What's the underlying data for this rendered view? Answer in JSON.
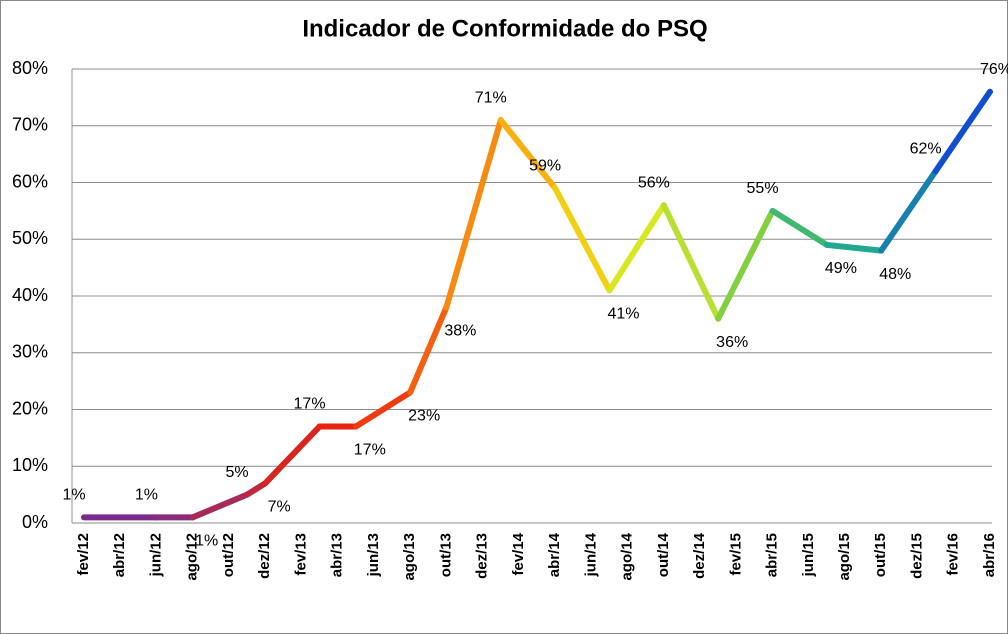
{
  "chart_data": {
    "type": "line",
    "title": "Indicador de Conformidade do PSQ",
    "categories": [
      "fev/12",
      null,
      "abr/12",
      null,
      "jun/12",
      null,
      "ago/12",
      null,
      "out/12",
      null,
      "dez/12",
      null,
      "fev/13",
      null,
      "abr/13",
      null,
      "jun/13",
      null,
      "ago/13",
      null,
      "out/13",
      null,
      "dez/13",
      null,
      "fev/14",
      null,
      "abr/14",
      null,
      "jun/14",
      null,
      "ago/14",
      null,
      "out/14",
      null,
      "dez/14",
      null,
      "fev/15",
      null,
      "abr/15",
      null,
      "jun/15",
      null,
      "ago/15",
      null,
      "out/15",
      null,
      "dez/15",
      null,
      "fev/16",
      null,
      "abr/16"
    ],
    "values": [
      1,
      null,
      null,
      null,
      1,
      null,
      1,
      null,
      null,
      5,
      7,
      null,
      null,
      17,
      null,
      17,
      null,
      null,
      23,
      null,
      38,
      null,
      null,
      71,
      null,
      null,
      59,
      null,
      null,
      41,
      null,
      null,
      56,
      null,
      null,
      36,
      null,
      null,
      55,
      null,
      null,
      49,
      null,
      null,
      48,
      null,
      null,
      62,
      null,
      null,
      76
    ],
    "value_labels": [
      "1%",
      null,
      null,
      null,
      "1%",
      null,
      "1%",
      null,
      null,
      "5%",
      "7%",
      null,
      null,
      "17%",
      null,
      "17%",
      null,
      null,
      "23%",
      null,
      "38%",
      null,
      null,
      "71%",
      null,
      null,
      "59%",
      null,
      null,
      "41%",
      null,
      null,
      "56%",
      null,
      null,
      "36%",
      null,
      null,
      "55%",
      null,
      null,
      "49%",
      null,
      null,
      "48%",
      null,
      null,
      "62%",
      null,
      null,
      "76%"
    ],
    "connect_gaps": true,
    "segment_colors": [
      "#7b2a8e",
      "#8a2a7a",
      "#a82a5a",
      "#c0283e",
      "#d8261e",
      "#e82410",
      "#f03a10",
      "#f56010",
      "#f88a10",
      "#f8b010",
      "#f0d010",
      "#d8e820",
      "#b8e030",
      "#80d040",
      "#40b870",
      "#20a890",
      "#1880b0",
      "#1050d0"
    ],
    "ylim": [
      0,
      80
    ],
    "yticks": [
      {
        "value": 0,
        "label": "0%"
      },
      {
        "value": 10,
        "label": "10%"
      },
      {
        "value": 20,
        "label": "20%"
      },
      {
        "value": 30,
        "label": "30%"
      },
      {
        "value": 40,
        "label": "40%"
      },
      {
        "value": 50,
        "label": "50%"
      },
      {
        "value": 60,
        "label": "60%"
      },
      {
        "value": 70,
        "label": "70%"
      },
      {
        "value": 80,
        "label": "80%"
      }
    ],
    "grid": true
  }
}
